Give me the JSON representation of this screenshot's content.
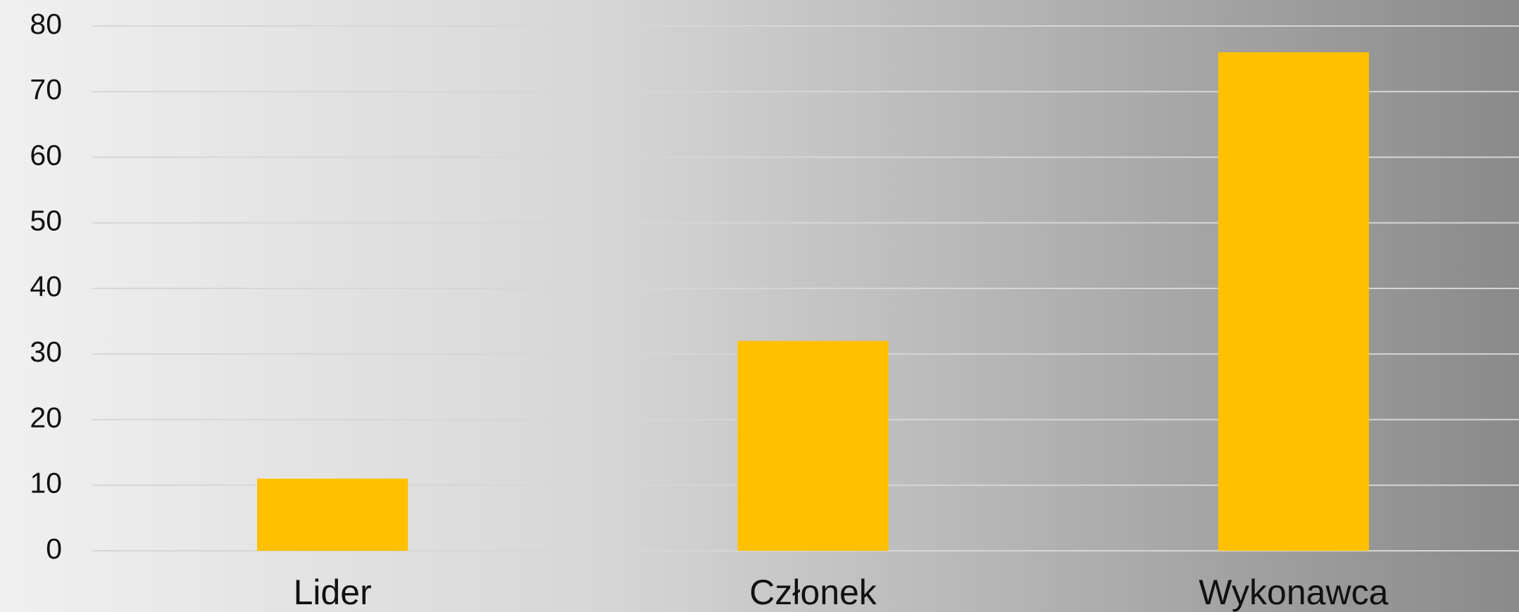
{
  "chart_data": {
    "type": "bar",
    "categories": [
      "Lider",
      "Członek",
      "Wykonawca"
    ],
    "values": [
      11,
      32,
      76
    ],
    "color": "#ffc000",
    "ylim": [
      0,
      80
    ],
    "yticks": [
      0,
      10,
      20,
      30,
      40,
      50,
      60,
      70,
      80
    ],
    "grid": true
  }
}
